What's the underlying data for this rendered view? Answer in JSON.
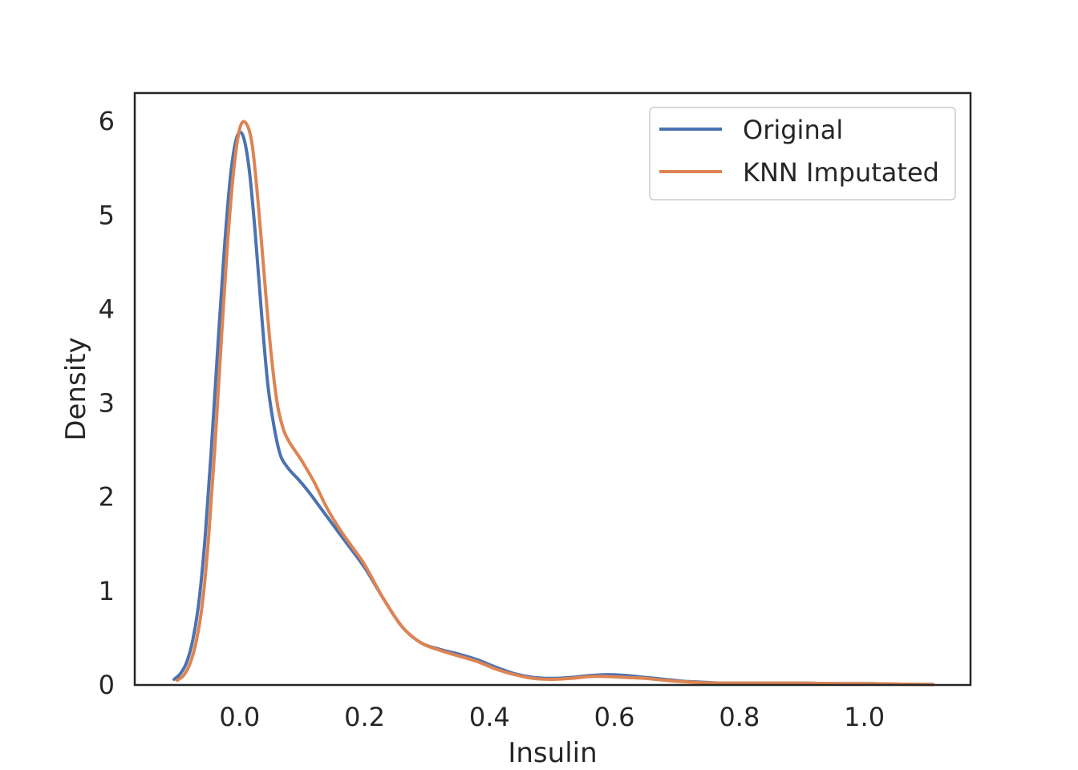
{
  "chart_data": {
    "type": "line",
    "title": "",
    "xlabel": "Insulin",
    "ylabel": "Density",
    "xlim": [
      -0.168,
      1.17
    ],
    "ylim": [
      0,
      6.3
    ],
    "xticks": [
      "0.0",
      "0.2",
      "0.4",
      "0.6",
      "0.8",
      "1.0"
    ],
    "xtick_values": [
      0.0,
      0.2,
      0.4,
      0.6,
      0.8,
      1.0
    ],
    "yticks": [
      "0",
      "1",
      "2",
      "3",
      "4",
      "5",
      "6"
    ],
    "ytick_values": [
      0,
      1,
      2,
      3,
      4,
      5,
      6
    ],
    "grid": false,
    "legend_position": "top-right",
    "series": [
      {
        "name": "Original",
        "color": "#4c72b0",
        "x": [
          -0.105,
          -0.095,
          -0.085,
          -0.075,
          -0.065,
          -0.055,
          -0.045,
          -0.035,
          -0.025,
          -0.015,
          -0.005,
          0.005,
          0.015,
          0.025,
          0.035,
          0.045,
          0.055,
          0.065,
          0.075,
          0.085,
          0.095,
          0.11,
          0.13,
          0.15,
          0.17,
          0.2,
          0.23,
          0.26,
          0.29,
          0.32,
          0.35,
          0.38,
          0.41,
          0.44,
          0.47,
          0.5,
          0.53,
          0.56,
          0.59,
          0.62,
          0.65,
          0.68,
          0.71,
          0.74,
          0.77,
          0.8,
          0.85,
          0.9,
          0.95,
          1.0,
          1.05,
          1.11
        ],
        "y": [
          0.06,
          0.12,
          0.24,
          0.48,
          0.9,
          1.6,
          2.55,
          3.6,
          4.6,
          5.4,
          5.82,
          5.85,
          5.5,
          4.8,
          3.95,
          3.2,
          2.75,
          2.45,
          2.33,
          2.25,
          2.18,
          2.06,
          1.88,
          1.7,
          1.52,
          1.25,
          0.92,
          0.62,
          0.45,
          0.38,
          0.33,
          0.27,
          0.19,
          0.12,
          0.08,
          0.07,
          0.08,
          0.1,
          0.11,
          0.1,
          0.08,
          0.06,
          0.04,
          0.03,
          0.02,
          0.02,
          0.02,
          0.02,
          0.015,
          0.015,
          0.01,
          0.005
        ]
      },
      {
        "name": "KNN Imputated",
        "color": "#dd8452",
        "x": [
          -0.1,
          -0.09,
          -0.08,
          -0.07,
          -0.06,
          -0.05,
          -0.04,
          -0.03,
          -0.02,
          -0.01,
          0.0,
          0.01,
          0.02,
          0.03,
          0.04,
          0.05,
          0.06,
          0.07,
          0.08,
          0.09,
          0.1,
          0.12,
          0.14,
          0.16,
          0.18,
          0.2,
          0.23,
          0.26,
          0.29,
          0.32,
          0.35,
          0.38,
          0.41,
          0.44,
          0.47,
          0.5,
          0.53,
          0.56,
          0.59,
          0.62,
          0.65,
          0.68,
          0.71,
          0.74,
          0.77,
          0.8,
          0.85,
          0.9,
          0.95,
          1.0,
          1.05,
          1.11
        ],
        "y": [
          0.05,
          0.1,
          0.22,
          0.45,
          0.85,
          1.55,
          2.5,
          3.6,
          4.65,
          5.45,
          5.92,
          5.98,
          5.75,
          5.1,
          4.3,
          3.55,
          3.0,
          2.72,
          2.58,
          2.48,
          2.38,
          2.15,
          1.88,
          1.66,
          1.47,
          1.28,
          0.92,
          0.62,
          0.45,
          0.37,
          0.31,
          0.25,
          0.17,
          0.11,
          0.07,
          0.06,
          0.07,
          0.09,
          0.09,
          0.08,
          0.07,
          0.05,
          0.035,
          0.025,
          0.02,
          0.02,
          0.02,
          0.02,
          0.015,
          0.015,
          0.01,
          0.005
        ]
      }
    ]
  }
}
